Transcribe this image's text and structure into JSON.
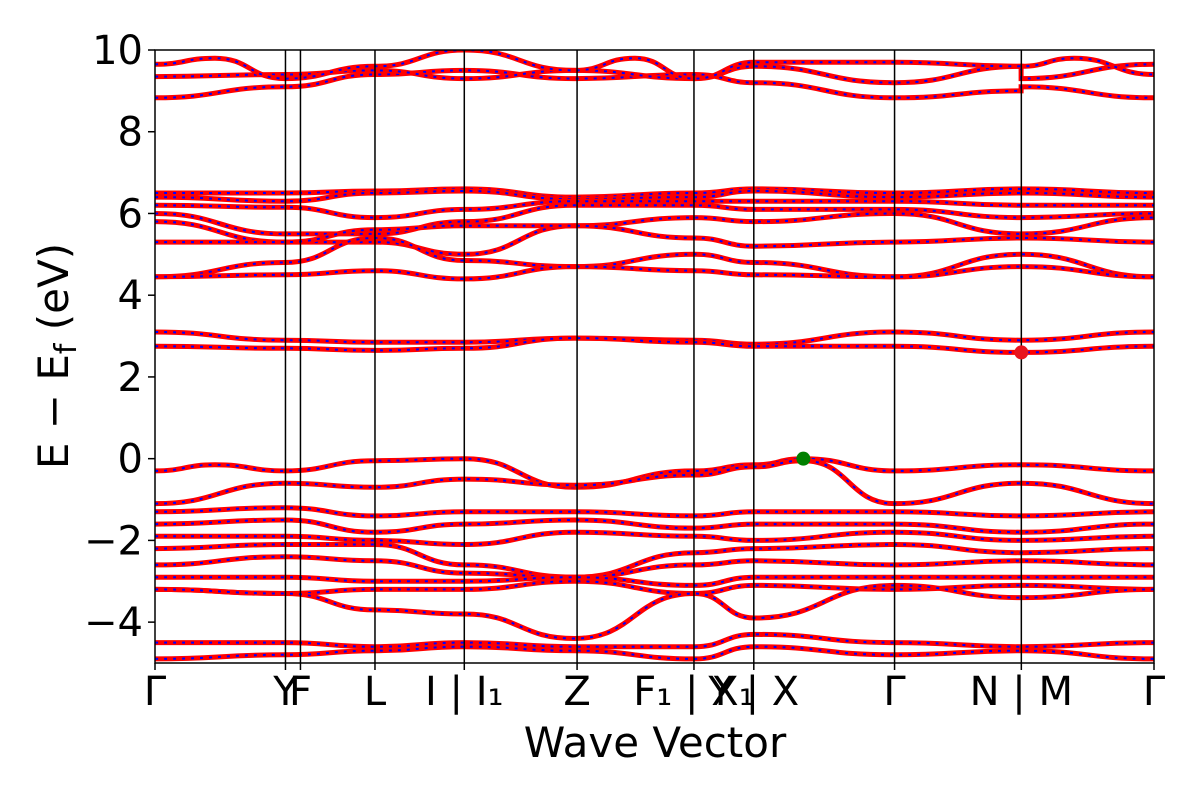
{
  "chart_data": {
    "type": "line",
    "title": "",
    "xlabel": "Wave Vector",
    "ylabel_main": "E − E",
    "ylabel_sub": "f",
    "ylabel_unit": " (eV)",
    "ylim": [
      -5,
      10
    ],
    "yticks": [
      -4,
      -2,
      0,
      2,
      4,
      6,
      8,
      10
    ],
    "ytick_labels": [
      "−4",
      "−2",
      "0",
      "2",
      "4",
      "6",
      "8",
      "10"
    ],
    "grid": false,
    "legend": "none",
    "kpoints": [
      {
        "label": "Γ",
        "x": 0.0
      },
      {
        "label": "Y",
        "x": 0.1306
      },
      {
        "label": "F",
        "x": 0.1456
      },
      {
        "label": "L",
        "x": 0.2202
      },
      {
        "label": "I | I₁",
        "x": 0.3096
      },
      {
        "label": "Z",
        "x": 0.4225
      },
      {
        "label": "F₁ | X₁",
        "x": 0.5395
      },
      {
        "label": "Y | X",
        "x": 0.5994
      },
      {
        "label": "Γ",
        "x": 0.7403
      },
      {
        "label": "N | M",
        "x": 0.8672
      },
      {
        "label": "Γ",
        "x": 1.0
      }
    ],
    "markers": [
      {
        "name": "VBM",
        "x": 0.649,
        "y": 0.0,
        "color": "#008000"
      },
      {
        "name": "CBM",
        "x": 0.8672,
        "y": 2.6,
        "color": "#e8141e"
      }
    ],
    "colors": {
      "series_a": "#ff0000",
      "series_b": "#0000ff"
    },
    "series": [
      {
        "values": [
          [
            0,
            8.83
          ],
          [
            0.13,
            9.1
          ],
          [
            0.22,
            9.4
          ],
          [
            0.31,
            9.5
          ],
          [
            0.42,
            9.3
          ],
          [
            0.54,
            9.4
          ],
          [
            0.6,
            9.2
          ],
          [
            0.74,
            8.83
          ],
          [
            0.867,
            9.0
          ],
          [
            0.867,
            9.1
          ],
          [
            1.0,
            8.83
          ]
        ]
      },
      {
        "values": [
          [
            0,
            9.35
          ],
          [
            0.13,
            9.4
          ],
          [
            0.22,
            9.5
          ],
          [
            0.31,
            9.3
          ],
          [
            0.42,
            9.5
          ],
          [
            0.54,
            9.3
          ],
          [
            0.6,
            9.6
          ],
          [
            0.74,
            9.2
          ],
          [
            0.867,
            9.6
          ],
          [
            0.867,
            9.3
          ],
          [
            1.0,
            9.65
          ]
        ]
      },
      {
        "values": [
          [
            0,
            9.65
          ],
          [
            0.06,
            9.8
          ],
          [
            0.13,
            9.3
          ],
          [
            0.22,
            9.6
          ],
          [
            0.31,
            10.0
          ],
          [
            0.42,
            9.5
          ],
          [
            0.48,
            9.8
          ],
          [
            0.54,
            9.3
          ],
          [
            0.6,
            9.7
          ],
          [
            0.74,
            9.7
          ],
          [
            0.867,
            9.6
          ],
          [
            0.92,
            9.8
          ],
          [
            1.0,
            9.4
          ]
        ]
      },
      {
        "values": [
          [
            0,
            6.5
          ],
          [
            0.13,
            6.5
          ],
          [
            0.22,
            6.55
          ],
          [
            0.31,
            6.6
          ],
          [
            0.42,
            6.4
          ],
          [
            0.54,
            6.5
          ],
          [
            0.6,
            6.6
          ],
          [
            0.74,
            6.5
          ],
          [
            0.867,
            6.6
          ],
          [
            1.0,
            6.5
          ]
        ]
      },
      {
        "values": [
          [
            0,
            6.4
          ],
          [
            0.13,
            6.3
          ],
          [
            0.22,
            6.5
          ],
          [
            0.31,
            6.55
          ],
          [
            0.42,
            6.35
          ],
          [
            0.54,
            6.4
          ],
          [
            0.6,
            6.55
          ],
          [
            0.74,
            6.4
          ],
          [
            0.867,
            6.5
          ],
          [
            1.0,
            6.4
          ]
        ]
      },
      {
        "values": [
          [
            0,
            6.2
          ],
          [
            0.13,
            6.15
          ],
          [
            0.22,
            5.9
          ],
          [
            0.31,
            6.1
          ],
          [
            0.42,
            6.3
          ],
          [
            0.54,
            6.3
          ],
          [
            0.6,
            6.3
          ],
          [
            0.74,
            6.3
          ],
          [
            0.867,
            6.2
          ],
          [
            1.0,
            6.2
          ]
        ]
      },
      {
        "values": [
          [
            0,
            6.0
          ],
          [
            0.13,
            5.5
          ],
          [
            0.22,
            5.5
          ],
          [
            0.31,
            5.8
          ],
          [
            0.42,
            6.2
          ],
          [
            0.54,
            6.2
          ],
          [
            0.6,
            6.1
          ],
          [
            0.74,
            6.1
          ],
          [
            0.867,
            5.9
          ],
          [
            1.0,
            6.0
          ]
        ]
      },
      {
        "values": [
          [
            0,
            5.8
          ],
          [
            0.13,
            5.3
          ],
          [
            0.22,
            5.3
          ],
          [
            0.31,
            5.0
          ],
          [
            0.42,
            5.7
          ],
          [
            0.54,
            5.9
          ],
          [
            0.6,
            5.8
          ],
          [
            0.74,
            6.0
          ],
          [
            0.867,
            5.5
          ],
          [
            1.0,
            5.9
          ]
        ]
      },
      {
        "values": [
          [
            0,
            5.3
          ],
          [
            0.13,
            5.3
          ],
          [
            0.22,
            5.6
          ],
          [
            0.31,
            5.7
          ],
          [
            0.42,
            5.7
          ],
          [
            0.54,
            5.4
          ],
          [
            0.6,
            5.2
          ],
          [
            0.74,
            5.3
          ],
          [
            0.867,
            5.4
          ],
          [
            1.0,
            5.3
          ]
        ]
      },
      {
        "values": [
          [
            0,
            4.45
          ],
          [
            0.13,
            4.8
          ],
          [
            0.22,
            5.4
          ],
          [
            0.31,
            4.85
          ],
          [
            0.42,
            4.7
          ],
          [
            0.54,
            5.0
          ],
          [
            0.6,
            4.8
          ],
          [
            0.74,
            4.45
          ],
          [
            0.867,
            5.0
          ],
          [
            1.0,
            4.45
          ]
        ]
      },
      {
        "values": [
          [
            0,
            4.45
          ],
          [
            0.13,
            4.5
          ],
          [
            0.22,
            4.6
          ],
          [
            0.31,
            4.4
          ],
          [
            0.42,
            4.7
          ],
          [
            0.54,
            4.6
          ],
          [
            0.6,
            4.5
          ],
          [
            0.74,
            4.45
          ],
          [
            0.867,
            4.7
          ],
          [
            1.0,
            4.45
          ]
        ]
      },
      {
        "values": [
          [
            0,
            3.1
          ],
          [
            0.13,
            2.9
          ],
          [
            0.22,
            2.85
          ],
          [
            0.31,
            2.85
          ],
          [
            0.42,
            2.95
          ],
          [
            0.54,
            2.9
          ],
          [
            0.6,
            2.8
          ],
          [
            0.74,
            3.1
          ],
          [
            0.867,
            2.9
          ],
          [
            1.0,
            3.1
          ]
        ]
      },
      {
        "values": [
          [
            0,
            2.75
          ],
          [
            0.13,
            2.7
          ],
          [
            0.22,
            2.65
          ],
          [
            0.31,
            2.7
          ],
          [
            0.42,
            2.95
          ],
          [
            0.54,
            2.85
          ],
          [
            0.6,
            2.75
          ],
          [
            0.74,
            2.75
          ],
          [
            0.867,
            2.6
          ],
          [
            1.0,
            2.75
          ]
        ]
      },
      {
        "values": [
          [
            0,
            -0.3
          ],
          [
            0.06,
            -0.15
          ],
          [
            0.13,
            -0.3
          ],
          [
            0.22,
            -0.05
          ],
          [
            0.31,
            0.0
          ],
          [
            0.42,
            -0.7
          ],
          [
            0.54,
            -0.3
          ],
          [
            0.6,
            -0.15
          ],
          [
            0.649,
            0.0
          ],
          [
            0.74,
            -0.3
          ],
          [
            0.867,
            -0.15
          ],
          [
            1.0,
            -0.3
          ]
        ]
      },
      {
        "values": [
          [
            0,
            -1.1
          ],
          [
            0.13,
            -0.6
          ],
          [
            0.22,
            -0.7
          ],
          [
            0.31,
            -0.5
          ],
          [
            0.42,
            -0.65
          ],
          [
            0.54,
            -0.4
          ],
          [
            0.6,
            -0.2
          ],
          [
            0.649,
            -0.05
          ],
          [
            0.74,
            -1.1
          ],
          [
            0.867,
            -0.6
          ],
          [
            1.0,
            -1.1
          ]
        ]
      },
      {
        "values": [
          [
            0,
            -1.3
          ],
          [
            0.13,
            -1.2
          ],
          [
            0.22,
            -1.4
          ],
          [
            0.31,
            -1.3
          ],
          [
            0.42,
            -1.3
          ],
          [
            0.54,
            -1.4
          ],
          [
            0.6,
            -1.3
          ],
          [
            0.74,
            -1.3
          ],
          [
            0.867,
            -1.4
          ],
          [
            1.0,
            -1.3
          ]
        ]
      },
      {
        "values": [
          [
            0,
            -1.6
          ],
          [
            0.13,
            -1.5
          ],
          [
            0.22,
            -1.8
          ],
          [
            0.31,
            -1.6
          ],
          [
            0.42,
            -1.5
          ],
          [
            0.54,
            -1.7
          ],
          [
            0.6,
            -1.6
          ],
          [
            0.74,
            -1.6
          ],
          [
            0.867,
            -1.8
          ],
          [
            1.0,
            -1.6
          ]
        ]
      },
      {
        "values": [
          [
            0,
            -1.9
          ],
          [
            0.13,
            -1.9
          ],
          [
            0.22,
            -2.0
          ],
          [
            0.31,
            -2.1
          ],
          [
            0.42,
            -1.8
          ],
          [
            0.54,
            -1.9
          ],
          [
            0.6,
            -2.0
          ],
          [
            0.74,
            -1.8
          ],
          [
            0.867,
            -2.0
          ],
          [
            1.0,
            -1.9
          ]
        ]
      },
      {
        "values": [
          [
            0,
            -2.2
          ],
          [
            0.13,
            -2.1
          ],
          [
            0.22,
            -2.1
          ],
          [
            0.31,
            -2.6
          ],
          [
            0.42,
            -2.9
          ],
          [
            0.54,
            -2.3
          ],
          [
            0.6,
            -2.2
          ],
          [
            0.74,
            -2.1
          ],
          [
            0.867,
            -2.3
          ],
          [
            1.0,
            -2.2
          ]
        ]
      },
      {
        "values": [
          [
            0,
            -2.6
          ],
          [
            0.13,
            -2.4
          ],
          [
            0.22,
            -2.5
          ],
          [
            0.31,
            -2.8
          ],
          [
            0.42,
            -2.9
          ],
          [
            0.54,
            -2.6
          ],
          [
            0.6,
            -2.5
          ],
          [
            0.74,
            -2.6
          ],
          [
            0.867,
            -2.5
          ],
          [
            1.0,
            -2.6
          ]
        ]
      },
      {
        "values": [
          [
            0,
            -2.9
          ],
          [
            0.13,
            -2.9
          ],
          [
            0.22,
            -3.0
          ],
          [
            0.31,
            -3.0
          ],
          [
            0.42,
            -2.9
          ],
          [
            0.54,
            -3.1
          ],
          [
            0.6,
            -2.9
          ],
          [
            0.74,
            -2.9
          ],
          [
            0.867,
            -2.9
          ],
          [
            1.0,
            -2.9
          ]
        ]
      },
      {
        "values": [
          [
            0,
            -3.2
          ],
          [
            0.13,
            -3.3
          ],
          [
            0.22,
            -3.2
          ],
          [
            0.31,
            -3.2
          ],
          [
            0.42,
            -3.0
          ],
          [
            0.54,
            -3.3
          ],
          [
            0.6,
            -3.1
          ],
          [
            0.74,
            -3.2
          ],
          [
            0.867,
            -3.1
          ],
          [
            1.0,
            -3.2
          ]
        ]
      },
      {
        "values": [
          [
            0,
            -3.2
          ],
          [
            0.13,
            -3.3
          ],
          [
            0.22,
            -3.7
          ],
          [
            0.31,
            -3.8
          ],
          [
            0.42,
            -4.4
          ],
          [
            0.54,
            -3.3
          ],
          [
            0.6,
            -3.9
          ],
          [
            0.74,
            -3.1
          ],
          [
            0.867,
            -3.4
          ],
          [
            1.0,
            -3.2
          ]
        ]
      },
      {
        "values": [
          [
            0,
            -4.5
          ],
          [
            0.13,
            -4.5
          ],
          [
            0.22,
            -4.6
          ],
          [
            0.31,
            -4.5
          ],
          [
            0.42,
            -4.6
          ],
          [
            0.54,
            -4.6
          ],
          [
            0.6,
            -4.3
          ],
          [
            0.74,
            -4.5
          ],
          [
            0.867,
            -4.6
          ],
          [
            1.0,
            -4.5
          ]
        ]
      },
      {
        "values": [
          [
            0,
            -4.9
          ],
          [
            0.13,
            -4.8
          ],
          [
            0.22,
            -4.7
          ],
          [
            0.31,
            -4.6
          ],
          [
            0.42,
            -4.7
          ],
          [
            0.54,
            -4.9
          ],
          [
            0.6,
            -4.6
          ],
          [
            0.74,
            -4.8
          ],
          [
            0.867,
            -4.7
          ],
          [
            1.0,
            -4.9
          ]
        ]
      }
    ]
  }
}
